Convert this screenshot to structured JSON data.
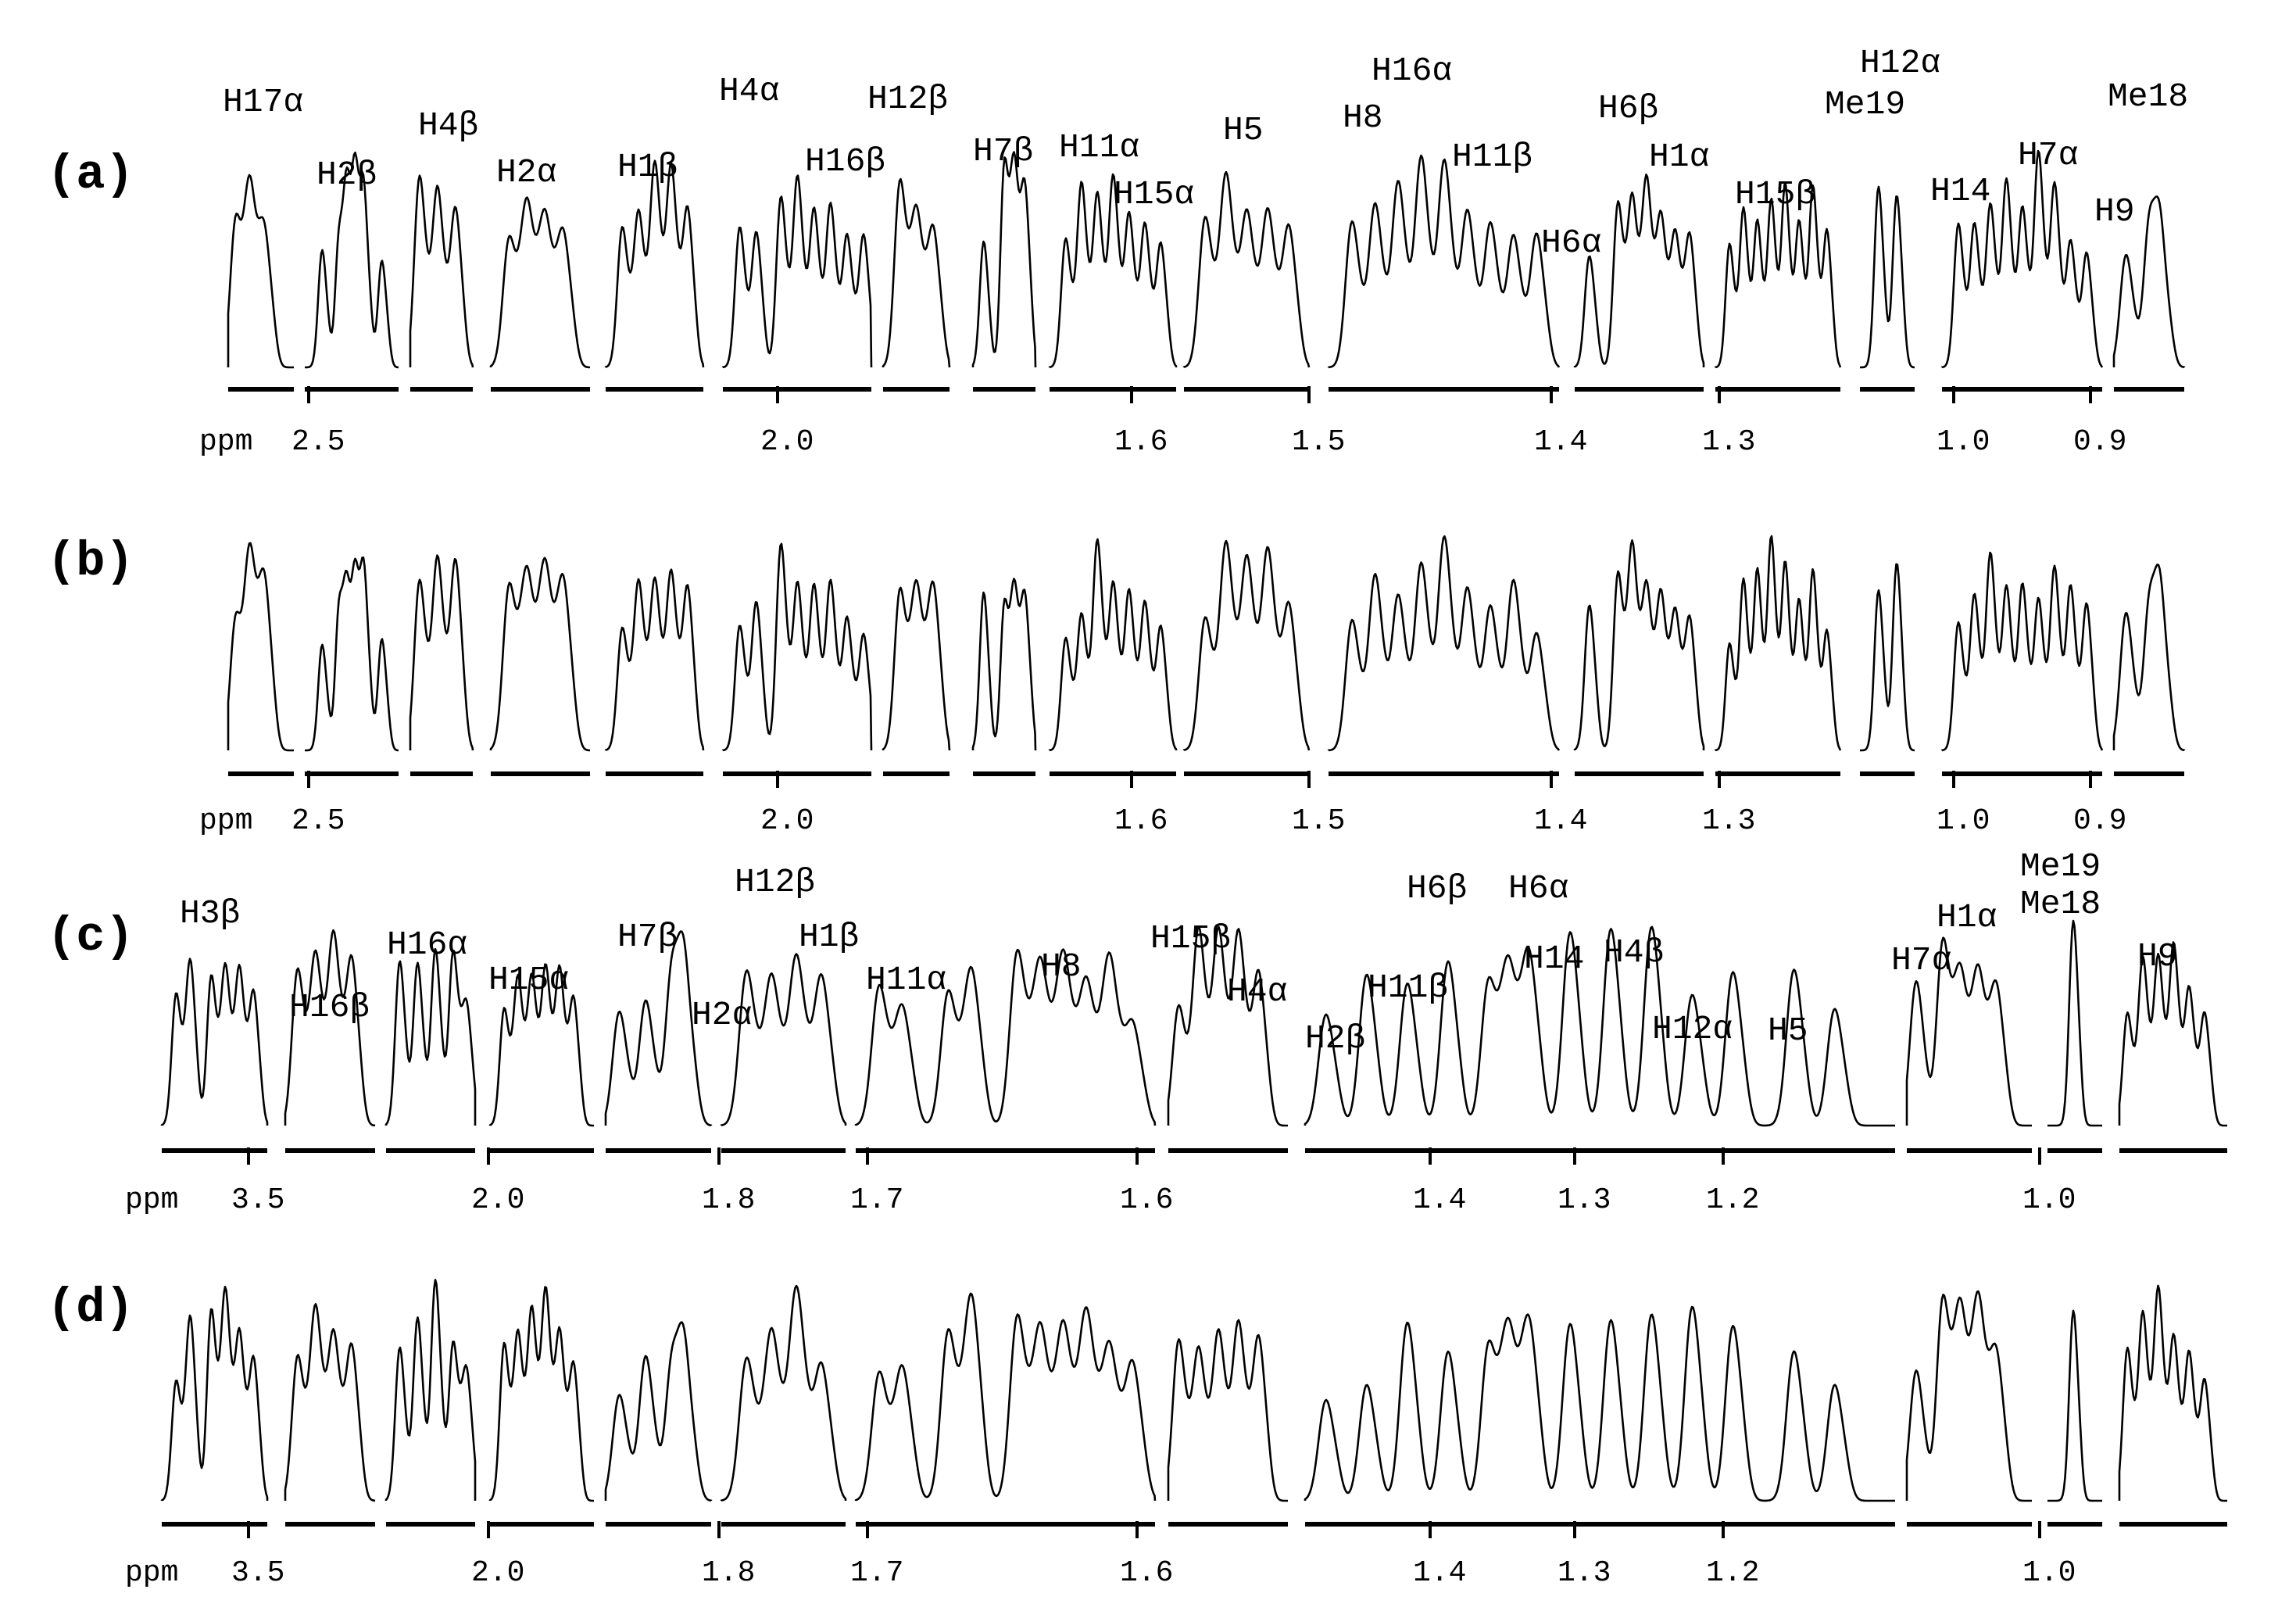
{
  "chart_data": {
    "type": "line",
    "title": "",
    "xlabel": "ppm",
    "panels": [
      {
        "letter": "(a)",
        "axis_ticks": [
          "2.5",
          "2.0",
          "1.6",
          "1.5",
          "1.4",
          "1.3",
          "1.0",
          "0.9"
        ],
        "segments": [
          {
            "range": [
              2.58,
              2.49
            ],
            "peaks": [
              2.57,
              2.55,
              2.53
            ],
            "labels": [
              "H17α"
            ]
          },
          {
            "range": [
              2.49,
              2.38
            ],
            "peaks": [
              2.47,
              2.45,
              2.44,
              2.43,
              2.42,
              2.4
            ],
            "labels": [
              "H2β"
            ]
          },
          {
            "range": [
              2.38,
              2.31
            ],
            "peaks": [
              2.37,
              2.35,
              2.33
            ],
            "labels": [
              "H4β"
            ]
          },
          {
            "range": [
              2.31,
              2.2
            ],
            "peaks": [
              2.29,
              2.27,
              2.25,
              2.23
            ],
            "labels": [
              "H2α"
            ]
          },
          {
            "range": [
              2.2,
              2.08
            ],
            "peaks": [
              2.18,
              2.16,
              2.14,
              2.12,
              2.1
            ],
            "labels": [
              "H1β"
            ]
          },
          {
            "range": [
              2.08,
              1.9
            ],
            "peaks": [
              2.06,
              2.04,
              2.01,
              1.99,
              1.97,
              1.95,
              1.93,
              1.91
            ],
            "labels": [
              "H4α",
              "H16β"
            ]
          },
          {
            "range": [
              1.9,
              1.82
            ],
            "peaks": [
              1.88,
              1.86,
              1.84
            ],
            "labels": [
              "H12β"
            ]
          },
          {
            "range": [
              1.7,
              1.64
            ],
            "peaks": [
              1.69,
              1.67,
              1.66,
              1.65
            ],
            "labels": [
              "H7β"
            ]
          },
          {
            "range": [
              1.64,
              1.56
            ],
            "peaks": [
              1.63,
              1.62,
              1.61,
              1.6,
              1.59,
              1.58,
              1.57
            ],
            "labels": [
              "H11α",
              "H15α"
            ]
          },
          {
            "range": [
              1.56,
              1.5
            ],
            "peaks": [
              1.55,
              1.54,
              1.53,
              1.52,
              1.51
            ],
            "labels": [
              "H5"
            ]
          },
          {
            "range": [
              1.5,
              1.4
            ],
            "peaks": [
              1.49,
              1.48,
              1.47,
              1.46,
              1.45,
              1.44,
              1.43,
              1.42,
              1.41
            ],
            "labels": [
              "H16α",
              "H8",
              "H11β"
            ]
          },
          {
            "range": [
              1.4,
              1.31
            ],
            "peaks": [
              1.39,
              1.37,
              1.36,
              1.35,
              1.34,
              1.33,
              1.32
            ],
            "labels": [
              "H6α",
              "H6β",
              "H1α"
            ]
          },
          {
            "range": [
              1.31,
              1.22
            ],
            "peaks": [
              1.3,
              1.29,
              1.28,
              1.27,
              1.26,
              1.25,
              1.24,
              1.23
            ],
            "labels": [
              "H15β"
            ]
          },
          {
            "range": [
              1.04,
              1.01
            ],
            "peaks": [
              1.03,
              1.02
            ],
            "labels": [
              "H12α",
              "Me19"
            ]
          },
          {
            "range": [
              1.0,
              0.9
            ],
            "peaks": [
              0.99,
              0.98,
              0.97,
              0.96,
              0.95,
              0.94,
              0.93,
              0.92,
              0.91
            ],
            "labels": [
              "H14",
              "H7α"
            ]
          },
          {
            "range": [
              0.89,
              0.86
            ],
            "peaks": [
              0.885,
              0.875,
              0.87
            ],
            "labels": [
              "H9",
              "Me18"
            ]
          }
        ]
      },
      {
        "letter": "(b)",
        "axis_ticks": [
          "2.5",
          "2.0",
          "1.6",
          "1.5",
          "1.4",
          "1.3",
          "1.0",
          "0.9"
        ],
        "segments": []
      },
      {
        "letter": "(c)",
        "axis_ticks": [
          "3.5",
          "2.0",
          "1.8",
          "1.7",
          "1.6",
          "1.4",
          "1.3",
          "1.2",
          "1.0"
        ],
        "segments": [
          {
            "range": [
              3.6,
              3.45
            ],
            "peaks": [
              3.58,
              3.56,
              3.53,
              3.51,
              3.49,
              3.47
            ],
            "labels": [
              "H3β"
            ]
          },
          {
            "range": [
              2.45,
              2.3
            ],
            "peaks": [
              2.43,
              2.4,
              2.37,
              2.34
            ],
            "labels": [
              "H16β"
            ]
          },
          {
            "range": [
              2.25,
              2.05
            ],
            "peaks": [
              2.22,
              2.18,
              2.14,
              2.1,
              2.07
            ],
            "labels": [
              "H16α"
            ]
          },
          {
            "range": [
              2.0,
              1.85
            ],
            "peaks": [
              1.98,
              1.96,
              1.94,
              1.92,
              1.9,
              1.88
            ],
            "labels": [
              "H15α"
            ]
          },
          {
            "range": [
              1.85,
              1.81
            ],
            "peaks": [
              1.845,
              1.835,
              1.825,
              1.82
            ],
            "labels": [
              "H7β"
            ]
          },
          {
            "range": [
              1.8,
              1.75
            ],
            "peaks": [
              1.79,
              1.78,
              1.77,
              1.76
            ],
            "labels": [
              "H2α",
              "H12β",
              "H1β"
            ]
          },
          {
            "range": [
              1.72,
              1.59
            ],
            "peaks": [
              1.71,
              1.7,
              1.68,
              1.67,
              1.65,
              1.64,
              1.63,
              1.62,
              1.61,
              1.6
            ],
            "labels": [
              "H11α",
              "H8"
            ]
          },
          {
            "range": [
              1.58,
              1.52
            ],
            "peaks": [
              1.575,
              1.565,
              1.555,
              1.545,
              1.535
            ],
            "labels": [
              "H15β",
              "H4α"
            ]
          },
          {
            "range": [
              1.45,
              1.16
            ],
            "peaks": [
              1.44,
              1.42,
              1.4,
              1.38,
              1.36,
              1.35,
              1.34,
              1.32,
              1.3,
              1.28,
              1.26,
              1.24,
              1.21,
              1.19
            ],
            "labels": [
              "H2β",
              "H11β",
              "H6β",
              "H6α",
              "H14",
              "H4β",
              "H12α",
              "H5"
            ]
          },
          {
            "range": [
              1.05,
              0.98
            ],
            "peaks": [
              1.045,
              1.03,
              1.02,
              1.01,
              1.0
            ],
            "labels": [
              "H7α",
              "H1α"
            ]
          },
          {
            "range": [
              0.975,
              0.96
            ],
            "peaks": [
              0.968
            ],
            "labels": [
              "Me19",
              "Me18"
            ]
          },
          {
            "range": [
              0.95,
              0.88
            ],
            "peaks": [
              0.945,
              0.935,
              0.925,
              0.915,
              0.905,
              0.895
            ],
            "labels": [
              "H9"
            ]
          }
        ]
      },
      {
        "letter": "(d)",
        "axis_ticks": [
          "3.5",
          "2.0",
          "1.8",
          "1.7",
          "1.6",
          "1.4",
          "1.3",
          "1.2",
          "1.0"
        ],
        "segments": []
      }
    ]
  },
  "ui": {
    "ppm_text": "ppm"
  }
}
